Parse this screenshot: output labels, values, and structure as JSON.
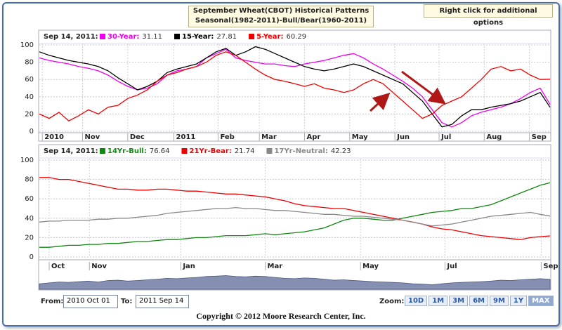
{
  "header": {
    "title_line1": "September Wheat(CBOT) Historical Patterns",
    "title_line2": "Seasonal(1982-2011)-Bull/Bear(1960-2011)",
    "options": "Right click for additional options"
  },
  "chart_data": [
    {
      "type": "line",
      "date_label": "Sep 14, 2011:",
      "xlim": [
        0,
        52
      ],
      "ylim": [
        0,
        100
      ],
      "yticks": [
        0,
        20,
        40,
        60,
        80,
        100
      ],
      "grid": true,
      "xticks": [
        {
          "value": 0.3,
          "label": "2010"
        },
        {
          "value": 4.4,
          "label": "Nov"
        },
        {
          "value": 9,
          "label": "Dec"
        },
        {
          "value": 13.7,
          "label": "2011"
        },
        {
          "value": 18.2,
          "label": "Feb"
        },
        {
          "value": 22.4,
          "label": "Mar"
        },
        {
          "value": 27,
          "label": "Apr"
        },
        {
          "value": 31.6,
          "label": "May"
        },
        {
          "value": 36.2,
          "label": "Jun"
        },
        {
          "value": 40.7,
          "label": "Jul"
        },
        {
          "value": 45.3,
          "label": "Aug"
        },
        {
          "value": 49.9,
          "label": "Sep"
        }
      ],
      "series": [
        {
          "name": "30-Year:",
          "color": "#ee00ee",
          "values": [
            85,
            82,
            80,
            78,
            75,
            73,
            70,
            65,
            58,
            52,
            48,
            50,
            55,
            65,
            70,
            72,
            75,
            85,
            90,
            95,
            85,
            82,
            80,
            78,
            78,
            76,
            75,
            78,
            80,
            82,
            85,
            88,
            90,
            85,
            78,
            72,
            65,
            58,
            50,
            40,
            25,
            10,
            5,
            10,
            18,
            22,
            25,
            28,
            32,
            38,
            45,
            50,
            31.11
          ]
        },
        {
          "name": "15-Year:",
          "color": "#000000",
          "values": [
            92,
            88,
            85,
            82,
            80,
            78,
            75,
            70,
            62,
            55,
            48,
            52,
            58,
            68,
            72,
            75,
            78,
            85,
            92,
            96,
            88,
            92,
            98,
            95,
            90,
            85,
            80,
            75,
            72,
            70,
            72,
            75,
            78,
            75,
            70,
            65,
            60,
            55,
            45,
            35,
            20,
            5,
            8,
            18,
            25,
            25,
            28,
            30,
            32,
            35,
            40,
            45,
            27.81
          ]
        },
        {
          "name": "5-Year:",
          "color": "#ee0000",
          "values": [
            20,
            15,
            22,
            12,
            18,
            25,
            20,
            28,
            30,
            38,
            42,
            48,
            58,
            65,
            68,
            72,
            75,
            80,
            88,
            92,
            88,
            80,
            72,
            65,
            60,
            58,
            55,
            52,
            55,
            50,
            48,
            45,
            48,
            55,
            60,
            55,
            45,
            35,
            25,
            15,
            20,
            30,
            35,
            40,
            50,
            60,
            72,
            75,
            70,
            72,
            65,
            60,
            60.29
          ]
        }
      ]
    },
    {
      "type": "line",
      "date_label": "Sep 14, 2011:",
      "xlim": [
        0,
        52
      ],
      "ylim": [
        0,
        100
      ],
      "yticks": [
        0,
        20,
        40,
        60,
        80,
        100
      ],
      "grid": true,
      "xticks": [
        {
          "value": 1,
          "label": "Oct"
        },
        {
          "value": 5.1,
          "label": "Nov"
        },
        {
          "value": 14.4,
          "label": "Jan"
        },
        {
          "value": 23,
          "label": "Mar"
        },
        {
          "value": 32.7,
          "label": "May"
        },
        {
          "value": 41.3,
          "label": "Jul"
        },
        {
          "value": 51.1,
          "label": "Sep"
        }
      ],
      "series": [
        {
          "name": "14Yr-Bull:",
          "color": "#118811",
          "values": [
            10,
            10,
            11,
            12,
            12,
            13,
            13,
            14,
            14,
            15,
            16,
            16,
            17,
            18,
            18,
            19,
            20,
            20,
            21,
            22,
            22,
            22,
            23,
            24,
            23,
            24,
            25,
            26,
            28,
            30,
            34,
            38,
            40,
            40,
            39,
            38,
            38,
            40,
            42,
            44,
            46,
            47,
            48,
            50,
            50,
            52,
            54,
            58,
            62,
            66,
            70,
            74,
            76.64
          ]
        },
        {
          "name": "21Yr-Bear:",
          "color": "#ee0000",
          "values": [
            82,
            82,
            80,
            80,
            78,
            76,
            74,
            72,
            70,
            70,
            69,
            69,
            70,
            70,
            69,
            68,
            68,
            67,
            66,
            65,
            65,
            64,
            63,
            62,
            60,
            58,
            55,
            53,
            52,
            51,
            50,
            50,
            48,
            46,
            44,
            42,
            40,
            38,
            36,
            34,
            31,
            29,
            28,
            26,
            24,
            22,
            21,
            20,
            19,
            18,
            20,
            21,
            21.74
          ]
        },
        {
          "name": "17Yr-Neutral:",
          "color": "#888888",
          "values": [
            36,
            37,
            37,
            38,
            38,
            38,
            39,
            39,
            40,
            40,
            41,
            42,
            43,
            45,
            46,
            47,
            48,
            49,
            50,
            50,
            51,
            50,
            50,
            49,
            48,
            48,
            47,
            46,
            45,
            44,
            44,
            43,
            42,
            42,
            41,
            40,
            39,
            38,
            36,
            34,
            32,
            33,
            34,
            36,
            38,
            40,
            42,
            43,
            44,
            45,
            46,
            44,
            42.23
          ]
        }
      ]
    },
    {
      "type": "area",
      "xlim": [
        0,
        52
      ],
      "ylim": [
        0,
        100
      ],
      "color": "#6f7ba3",
      "values": [
        30,
        35,
        40,
        38,
        42,
        45,
        40,
        48,
        50,
        45,
        48,
        52,
        55,
        60,
        58,
        62,
        65,
        70,
        72,
        75,
        70,
        68,
        72,
        70,
        65,
        60,
        58,
        62,
        60,
        55,
        50,
        52,
        48,
        45,
        42,
        40,
        38,
        35,
        30,
        28,
        25,
        30,
        35,
        38,
        40,
        42,
        45,
        50,
        48,
        52,
        55,
        58,
        55
      ]
    }
  ],
  "controls": {
    "from_label": "From:",
    "from_value": "2010 Oct 01",
    "to_label": "To:",
    "to_value": "2011 Sep 14",
    "zoom_label": "Zoom:",
    "zoom": [
      "10D",
      "1M",
      "3M",
      "6M",
      "9M",
      "1Y",
      "MAX"
    ],
    "active_zoom": "MAX"
  },
  "footer": {
    "copyright": "Copyright © 2012 Moore Research Center, Inc."
  }
}
